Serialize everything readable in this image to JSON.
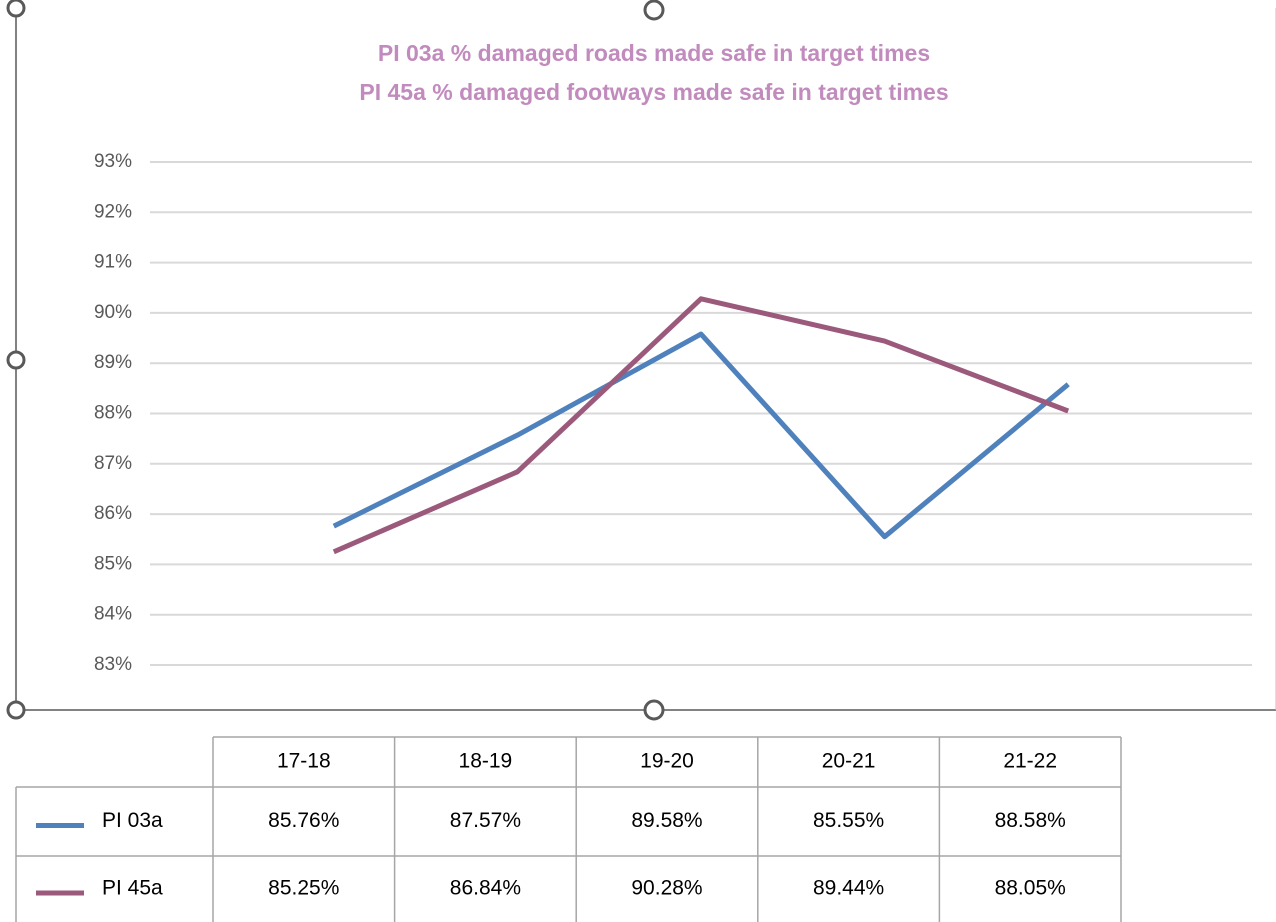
{
  "chart_data": {
    "type": "line",
    "title": [
      "PI 03a % damaged roads made safe in target times",
      "PI 45a % damaged footways made safe in target times"
    ],
    "categories": [
      "17-18",
      "18-19",
      "19-20",
      "20-21",
      "21-22"
    ],
    "series": [
      {
        "name": "PI 03a",
        "color": "#4f81bd",
        "values": [
          85.76,
          87.57,
          89.58,
          85.55,
          88.58
        ],
        "value_labels": [
          "85.76%",
          "87.57%",
          "89.58%",
          "85.55%",
          "88.58%"
        ]
      },
      {
        "name": "PI 45a",
        "color": "#9b5a7b",
        "values": [
          85.25,
          86.84,
          90.28,
          89.44,
          88.05
        ],
        "value_labels": [
          "85.25%",
          "86.84%",
          "90.28%",
          "89.44%",
          "88.05%"
        ]
      }
    ],
    "ylim": [
      83,
      93
    ],
    "yticks": [
      {
        "value": 83,
        "label": "83%"
      },
      {
        "value": 84,
        "label": "84%"
      },
      {
        "value": 85,
        "label": "85%"
      },
      {
        "value": 86,
        "label": "86%"
      },
      {
        "value": 87,
        "label": "87%"
      },
      {
        "value": 88,
        "label": "88%"
      },
      {
        "value": 89,
        "label": "89%"
      },
      {
        "value": 90,
        "label": "90%"
      },
      {
        "value": 91,
        "label": "91%"
      },
      {
        "value": 92,
        "label": "92%"
      },
      {
        "value": 93,
        "label": "93%"
      }
    ],
    "grid": true,
    "data_table": true
  }
}
